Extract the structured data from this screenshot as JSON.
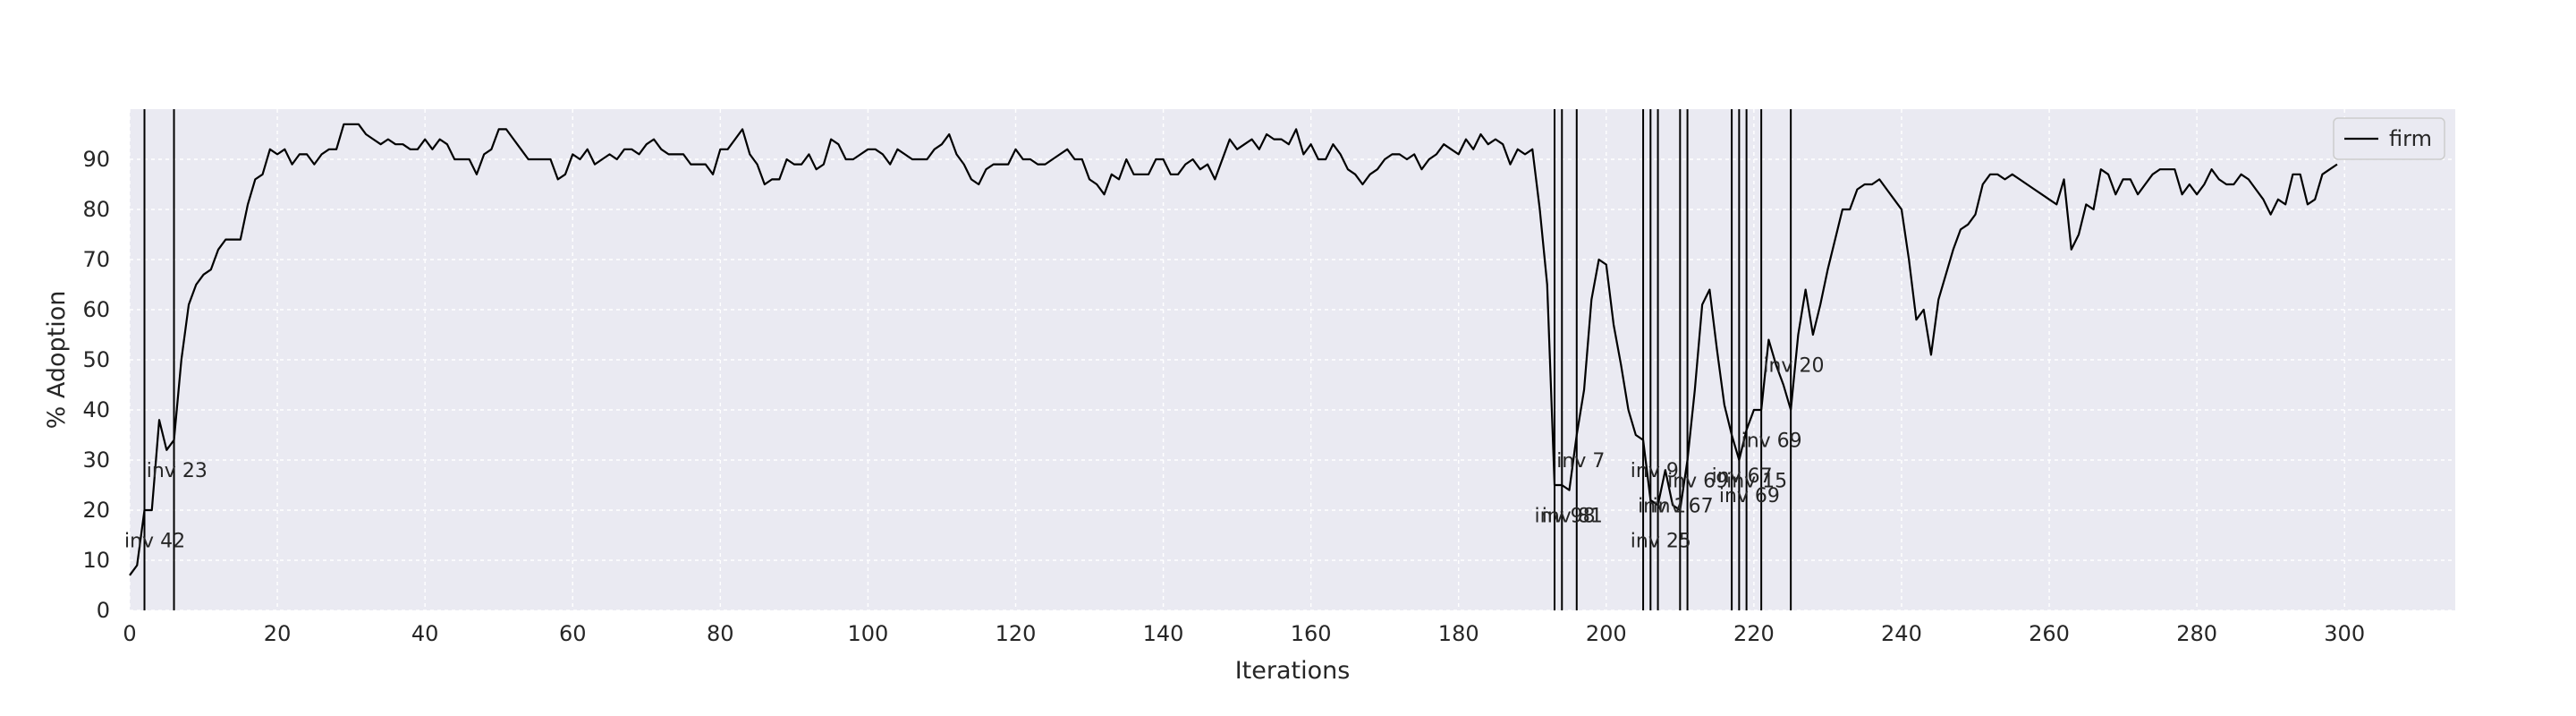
{
  "chart_data": {
    "type": "line",
    "xlabel": "Iterations",
    "ylabel": "% Adoption",
    "xlim": [
      0,
      315
    ],
    "ylim": [
      0,
      100
    ],
    "x_ticks": [
      "0",
      "20",
      "40",
      "60",
      "80",
      "100",
      "120",
      "140",
      "160",
      "180",
      "200",
      "220",
      "240",
      "260",
      "280",
      "300"
    ],
    "y_ticks": [
      "0",
      "10",
      "20",
      "30",
      "40",
      "50",
      "60",
      "70",
      "80",
      "90"
    ],
    "grid": true,
    "background_color": "#eaeaf2",
    "line_color": "#000000",
    "legend": {
      "placement": "top-right",
      "entries": [
        "firm"
      ]
    },
    "series": [
      {
        "name": "firm",
        "x": [
          0,
          1,
          2,
          3,
          4,
          5,
          6,
          7,
          8,
          9,
          10,
          11,
          12,
          13,
          14,
          15,
          16,
          17,
          18,
          19,
          20,
          21,
          22,
          23,
          24,
          25,
          26,
          27,
          28,
          29,
          30,
          31,
          32,
          33,
          34,
          35,
          36,
          37,
          38,
          39,
          40,
          41,
          42,
          43,
          44,
          45,
          46,
          47,
          48,
          49,
          50,
          51,
          52,
          53,
          54,
          55,
          56,
          57,
          58,
          59,
          60,
          61,
          62,
          63,
          64,
          65,
          66,
          67,
          68,
          69,
          70,
          71,
          72,
          73,
          74,
          75,
          76,
          77,
          78,
          79,
          80,
          81,
          82,
          83,
          84,
          85,
          86,
          87,
          88,
          89,
          90,
          91,
          92,
          93,
          94,
          95,
          96,
          97,
          98,
          99,
          100,
          101,
          102,
          103,
          104,
          105,
          106,
          107,
          108,
          109,
          110,
          111,
          112,
          113,
          114,
          115,
          116,
          117,
          118,
          119,
          120,
          121,
          122,
          123,
          124,
          125,
          126,
          127,
          128,
          129,
          130,
          131,
          132,
          133,
          134,
          135,
          136,
          137,
          138,
          139,
          140,
          141,
          142,
          143,
          144,
          145,
          146,
          147,
          148,
          149,
          150,
          151,
          152,
          153,
          154,
          155,
          156,
          157,
          158,
          159,
          160,
          161,
          162,
          163,
          164,
          165,
          166,
          167,
          168,
          169,
          170,
          171,
          172,
          173,
          174,
          175,
          176,
          177,
          178,
          179,
          180,
          181,
          182,
          183,
          184,
          185,
          186,
          187,
          188,
          189,
          190,
          191,
          192,
          193,
          194,
          195,
          196,
          197,
          198,
          199,
          200,
          201,
          202,
          203,
          204,
          205,
          206,
          207,
          208,
          209,
          210,
          211,
          212,
          213,
          214,
          215,
          216,
          217,
          218,
          219,
          220,
          221,
          222,
          223,
          224,
          225,
          226,
          227,
          228,
          229,
          230,
          231,
          232,
          233,
          234,
          235,
          236,
          237,
          238,
          239,
          240,
          241,
          242,
          243,
          244,
          245,
          246,
          247,
          248,
          249,
          250,
          251,
          252,
          253,
          254,
          255,
          256,
          257,
          258,
          259,
          260,
          261,
          262,
          263,
          264,
          265,
          266,
          267,
          268,
          269,
          270,
          271,
          272,
          273,
          274,
          275,
          276,
          277,
          278,
          279,
          280,
          281,
          282,
          283,
          284,
          285,
          286,
          287,
          288,
          289,
          290,
          291,
          292,
          293,
          294,
          295,
          296,
          297,
          298,
          299
        ],
        "values": [
          7,
          9,
          20,
          20,
          38,
          32,
          34,
          50,
          61,
          65,
          67,
          68,
          72,
          74,
          74,
          74,
          81,
          86,
          87,
          92,
          91,
          92,
          89,
          91,
          91,
          89,
          91,
          92,
          92,
          97,
          97,
          97,
          95,
          94,
          93,
          94,
          93,
          93,
          92,
          92,
          94,
          92,
          94,
          93,
          90,
          90,
          90,
          87,
          91,
          92,
          96,
          96,
          94,
          92,
          90,
          90,
          90,
          90,
          86,
          87,
          91,
          90,
          92,
          89,
          90,
          91,
          90,
          92,
          92,
          91,
          93,
          94,
          92,
          91,
          91,
          91,
          89,
          89,
          89,
          87,
          92,
          92,
          94,
          96,
          91,
          89,
          85,
          86,
          86,
          90,
          89,
          89,
          91,
          88,
          89,
          94,
          93,
          90,
          90,
          91,
          92,
          92,
          91,
          89,
          92,
          91,
          90,
          90,
          90,
          92,
          93,
          95,
          91,
          89,
          86,
          85,
          88,
          89,
          89,
          89,
          92,
          90,
          90,
          89,
          89,
          90,
          91,
          92,
          90,
          90,
          86,
          85,
          83,
          87,
          86,
          90,
          87,
          87,
          87,
          90,
          90,
          87,
          87,
          89,
          90,
          88,
          89,
          86,
          90,
          94,
          92,
          93,
          94,
          92,
          95,
          94,
          94,
          93,
          96,
          91,
          93,
          90,
          90,
          93,
          91,
          88,
          87,
          85,
          87,
          88,
          90,
          91,
          91,
          90,
          91,
          88,
          90,
          91,
          93,
          92,
          91,
          94,
          92,
          95,
          93,
          94,
          93,
          89,
          92,
          91,
          92,
          80,
          65,
          25,
          25,
          24,
          35,
          44,
          62,
          70,
          69,
          57,
          49,
          40,
          35,
          34,
          22,
          21,
          28,
          21,
          20,
          30,
          44,
          61,
          64,
          52,
          41,
          35,
          30,
          36,
          40,
          40,
          54,
          49,
          45,
          40,
          55,
          64,
          55,
          61,
          68,
          74,
          80,
          80,
          84,
          85,
          85,
          86,
          84,
          82,
          80,
          70,
          58,
          60,
          51,
          62,
          67,
          72,
          76,
          77,
          79,
          85,
          87,
          87,
          86,
          87,
          86,
          85,
          84,
          83,
          82,
          81,
          86,
          72,
          75,
          81,
          80,
          88,
          87,
          83,
          86,
          86,
          83,
          85,
          87,
          88,
          88,
          88,
          83,
          85,
          83,
          85,
          88,
          86,
          85,
          85,
          87,
          86,
          84,
          82,
          79,
          82,
          81,
          87,
          87,
          81,
          82,
          87,
          88,
          89
        ]
      }
    ],
    "vertical_lines": [
      2,
      6,
      193,
      194,
      196,
      205,
      206,
      207,
      210,
      211,
      217,
      218,
      219,
      221,
      225
    ],
    "annotations": [
      {
        "x": 0,
        "y": 14,
        "text": "inv 42"
      },
      {
        "x": 3,
        "y": 28,
        "text": "inv 23"
      },
      {
        "x": 191,
        "y": 19,
        "text": "inv 98"
      },
      {
        "x": 192,
        "y": 19,
        "text": "inv 81"
      },
      {
        "x": 194,
        "y": 30,
        "text": "inv 7"
      },
      {
        "x": 204,
        "y": 28,
        "text": "inv 9"
      },
      {
        "x": 204,
        "y": 14,
        "text": "inv 25"
      },
      {
        "x": 205,
        "y": 21,
        "text": "inv 1"
      },
      {
        "x": 207,
        "y": 21,
        "text": "inv 67"
      },
      {
        "x": 209,
        "y": 26,
        "text": "inv 69"
      },
      {
        "x": 215,
        "y": 27,
        "text": "inv 67"
      },
      {
        "x": 216,
        "y": 23,
        "text": "inv 69"
      },
      {
        "x": 217,
        "y": 26,
        "text": "inv 15"
      },
      {
        "x": 219,
        "y": 34,
        "text": "inv 69"
      },
      {
        "x": 222,
        "y": 49,
        "text": "inv 20"
      }
    ]
  }
}
